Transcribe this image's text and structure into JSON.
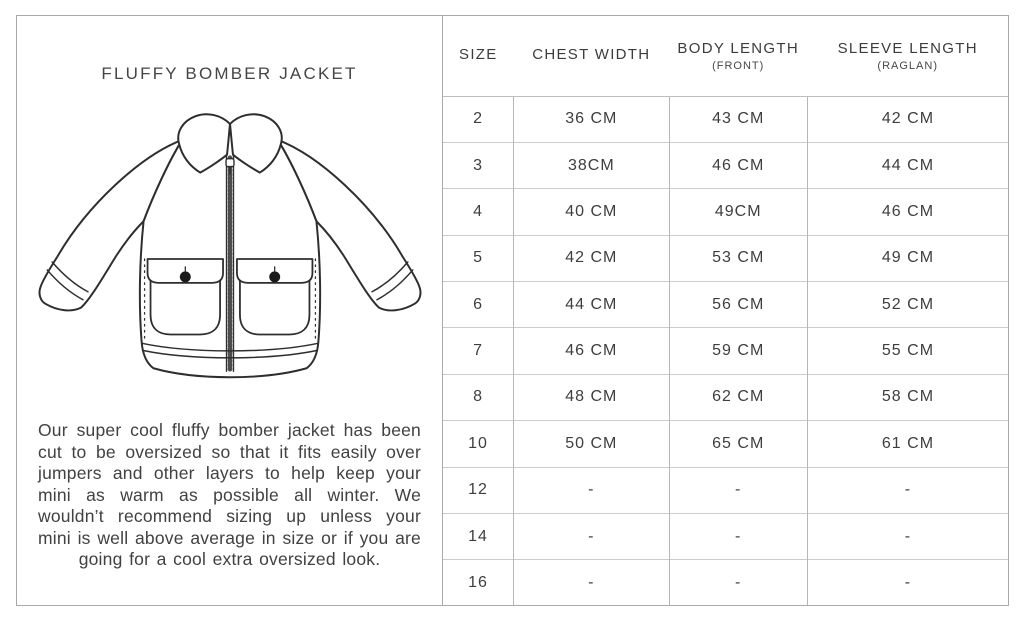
{
  "left_panel": {
    "title": "FLUFFY BOMBER JACKET",
    "illustration": "fluffy-bomber-jacket-technical-flat-drawing",
    "description": "Our super cool fluffy bomber jacket has been cut to be oversized so that it fits easily over jumpers and other layers to help keep your mini as warm as possible all winter. We wouldn’t recommend sizing up unless your mini is well above average in size or if you are going for a cool extra oversized look."
  },
  "size_chart": {
    "columns": [
      {
        "label": "SIZE",
        "sublabel": ""
      },
      {
        "label": "CHEST WIDTH",
        "sublabel": ""
      },
      {
        "label": "BODY LENGTH",
        "sublabel": "(FRONT)"
      },
      {
        "label": "SLEEVE LENGTH",
        "sublabel": "(RAGLAN)"
      }
    ],
    "rows": [
      [
        "2",
        "36 CM",
        "43 CM",
        "42 CM"
      ],
      [
        "3",
        "38CM",
        "46 CM",
        "44 CM"
      ],
      [
        "4",
        "40 CM",
        "49CM",
        "46 CM"
      ],
      [
        "5",
        "42 CM",
        "53 CM",
        "49 CM"
      ],
      [
        "6",
        "44 CM",
        "56 CM",
        "52 CM"
      ],
      [
        "7",
        "46 CM",
        "59 CM",
        "55 CM"
      ],
      [
        "8",
        "48 CM",
        "62 CM",
        "58 CM"
      ],
      [
        "10",
        "50 CM",
        "65 CM",
        "61 CM"
      ],
      [
        "12",
        "-",
        "-",
        "-"
      ],
      [
        "14",
        "-",
        "-",
        "-"
      ],
      [
        "16",
        "-",
        "-",
        "-"
      ]
    ]
  },
  "colors": {
    "border_outer": "#a9a9a9",
    "border_row": "#cbcbcb",
    "border_column": "#b6b6b6",
    "text": "#3e3e3e",
    "line_art": "#2e2e2e",
    "button_dot": "#1a1a1a",
    "background": "#ffffff"
  }
}
